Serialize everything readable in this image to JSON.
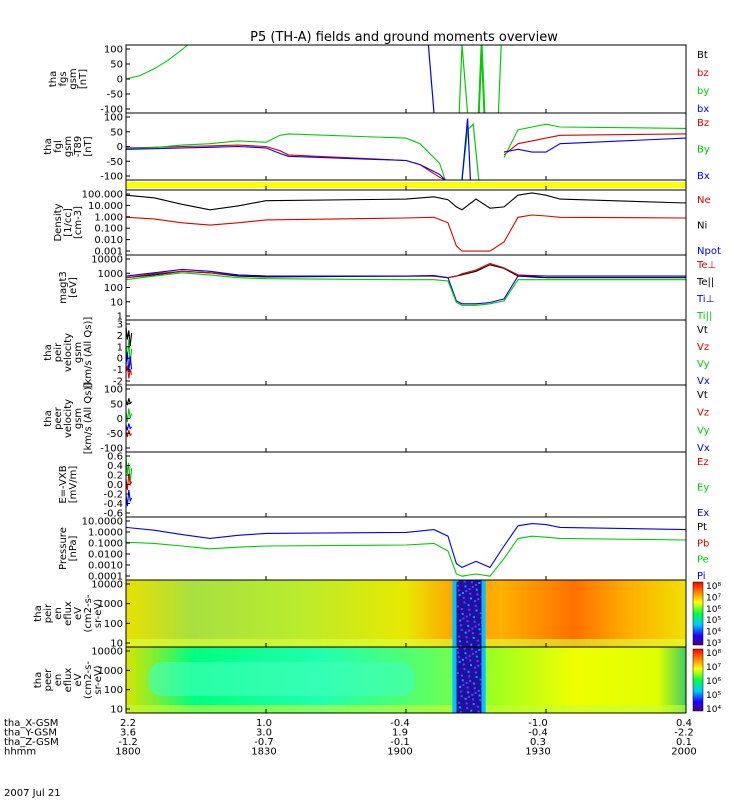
{
  "title": "P5 (TH-A) fields and ground moments overview",
  "date_label": "2007 Jul 21",
  "colors": {
    "black": "#000000",
    "red": "#dd0000",
    "green": "#00cc00",
    "blue": "#0000ee",
    "yellow": "#ffff00"
  },
  "ephemeris": {
    "rows": [
      {
        "label": "tha_X-GSM",
        "values": [
          "2.2",
          "1.0",
          "-0.4",
          "-1.0",
          "0.4"
        ]
      },
      {
        "label": "tha_Y-GSM",
        "values": [
          "3.6",
          "3.0",
          "1.9",
          "-0.4",
          "-2.2"
        ]
      },
      {
        "label": "tha_Z-GSM",
        "values": [
          "-1.2",
          "-0.7",
          "-0.1",
          "0.3",
          "0.1"
        ]
      },
      {
        "label": "hhmm",
        "values": [
          "1800",
          "1830",
          "1900",
          "1930",
          "2000"
        ]
      }
    ]
  },
  "chart_data": [
    {
      "id": "fgs",
      "type": "line",
      "ylabel": [
        "tha",
        "fgs",
        "gsm",
        "[nT]"
      ],
      "ylim": [
        -100,
        100
      ],
      "yticks": [
        "100",
        "50",
        "0",
        "-50",
        "-100"
      ],
      "legend": [
        "Bt",
        "bz",
        "by",
        "bx"
      ],
      "x": [
        1800,
        1805,
        1810,
        1815,
        1819,
        1822
      ],
      "series": [
        {
          "name": "by",
          "color": "green",
          "values": [
            0,
            10,
            30,
            55,
            80,
            100
          ]
        }
      ]
    },
    {
      "id": "fgl",
      "type": "line",
      "ylabel": [
        "tha",
        "fgl",
        "gsm",
        "-T89",
        "[nT]"
      ],
      "ylim": [
        -120,
        120
      ],
      "yticks": [
        "100",
        "50",
        "0",
        "-50",
        "-100"
      ],
      "legend": [
        "Bz",
        "By",
        "Bx"
      ],
      "x": [
        1800,
        1810,
        1820,
        1830,
        1840,
        1850,
        1855,
        1858,
        1900,
        1905,
        1908,
        1912,
        1914
      ],
      "series": [
        {
          "name": "Bz",
          "color": "red",
          "values": [
            -5,
            -3,
            0,
            2,
            5,
            0,
            -15,
            -30,
            -50,
            -65,
            -85,
            -110,
            -120
          ]
        },
        {
          "name": "By",
          "color": "green",
          "values": [
            -8,
            -4,
            5,
            10,
            20,
            15,
            40,
            45,
            30,
            10,
            -20,
            -60,
            -120
          ]
        },
        {
          "name": "Bx",
          "color": "blue",
          "values": [
            -10,
            -8,
            -5,
            -3,
            0,
            -5,
            -25,
            -35,
            -50,
            -65,
            -80,
            -100,
            -120
          ]
        }
      ]
    },
    {
      "id": "flag",
      "type": "bar",
      "color": "yellow"
    },
    {
      "id": "density",
      "type": "line",
      "scale": "log",
      "ylabel": [
        "Density",
        "[1/cc]",
        "[cm-3]"
      ],
      "ylim": [
        0.001,
        100
      ],
      "yticks": [
        "100.000",
        "10.000",
        "1.000",
        "0.100",
        "0.010",
        "0.001"
      ],
      "legend": [
        "Ne",
        "Ni",
        "Npot"
      ],
      "x": [
        1800,
        1810,
        1820,
        1830,
        1840,
        1850,
        1900,
        1910,
        1915,
        1918,
        1920,
        1925,
        1930,
        1935,
        1940,
        1945,
        1950,
        1955,
        2000
      ],
      "series": [
        {
          "name": "Ni",
          "color": "black",
          "values": [
            40,
            25,
            8,
            3,
            6,
            15,
            20,
            30,
            18,
            5,
            3,
            20,
            4,
            5,
            40,
            60,
            40,
            20,
            10
          ]
        },
        {
          "name": "Ne",
          "color": "red",
          "values": [
            0.8,
            0.6,
            0.3,
            0.2,
            0.3,
            0.5,
            0.7,
            0.8,
            0.3,
            0.005,
            0.002,
            0.002,
            0.002,
            0.01,
            0.8,
            1.2,
            1.0,
            0.8,
            0.7
          ]
        }
      ]
    },
    {
      "id": "temp",
      "type": "line",
      "scale": "log",
      "ylabel": [
        "magt3",
        "[eV]"
      ],
      "ylim": [
        1,
        10000
      ],
      "yticks": [
        "10000",
        "1000",
        "100",
        "10",
        "1"
      ],
      "legend": [
        "Te⊥",
        "Te||",
        "Ti⊥",
        "Ti||"
      ],
      "x": [
        1800,
        1810,
        1820,
        1830,
        1840,
        1850,
        1900,
        1910,
        1915,
        1918,
        1920,
        1925,
        1930,
        1935,
        1940,
        1950,
        2000
      ],
      "series": [
        {
          "name": "Te||",
          "color": "black",
          "values": [
            400,
            600,
            1000,
            800,
            500,
            450,
            500,
            500,
            400,
            500,
            600,
            1000,
            2500,
            1500,
            500,
            400,
            400
          ]
        },
        {
          "name": "Te⊥",
          "color": "red",
          "values": [
            400,
            700,
            1000,
            800,
            600,
            500,
            500,
            500,
            400,
            500,
            700,
            1200,
            3000,
            1600,
            600,
            500,
            500
          ]
        },
        {
          "name": "Ti⊥",
          "color": "blue",
          "values": [
            500,
            800,
            1300,
            1000,
            600,
            500,
            500,
            550,
            400,
            15,
            10,
            10,
            12,
            20,
            500,
            500,
            500
          ]
        },
        {
          "name": "Ti||",
          "color": "green",
          "values": [
            300,
            500,
            800,
            600,
            400,
            350,
            300,
            300,
            250,
            12,
            8,
            8,
            10,
            15,
            300,
            300,
            300
          ]
        }
      ]
    },
    {
      "id": "peir_vel",
      "type": "line",
      "ylabel": [
        "tha",
        "peir",
        "velocity",
        "gsm",
        "[km/s (All Qs)]"
      ],
      "ylim": [
        -2,
        3
      ],
      "yticks": [
        "3",
        "2",
        "1",
        "0",
        "-1",
        "-2"
      ],
      "legend": [
        "Vt",
        "Vz",
        "Vy",
        "Vx"
      ],
      "x": [
        1800,
        1800.5,
        1801,
        1801.5,
        1802
      ],
      "series": [
        {
          "name": "Vt",
          "color": "black",
          "values": [
            2.5,
            1.5,
            2.2,
            1.0,
            2.0
          ]
        },
        {
          "name": "Vy",
          "color": "green",
          "values": [
            1.0,
            0.0,
            1.5,
            -0.5,
            0.8
          ]
        },
        {
          "name": "Vx",
          "color": "blue",
          "values": [
            -0.5,
            0.5,
            -1.0,
            0.2,
            -0.8
          ]
        },
        {
          "name": "Vz",
          "color": "red",
          "values": [
            -1.0,
            -0.5,
            -1.5,
            -0.8,
            -1.2
          ]
        }
      ]
    },
    {
      "id": "peer_vel",
      "type": "line",
      "ylabel": [
        "tha",
        "peer",
        "velocity",
        "gsm",
        "[km/s (All Qs)]"
      ],
      "ylim": [
        -100,
        100
      ],
      "yticks": [
        "100",
        "50",
        "0",
        "-50",
        "-100"
      ],
      "legend": [
        "Vt",
        "Vz",
        "Vy",
        "Vx"
      ],
      "x": [
        1800,
        1800.5,
        1801,
        1801.5,
        1802
      ],
      "series": [
        {
          "name": "Vt",
          "color": "black",
          "values": [
            55,
            40,
            60,
            45,
            50
          ]
        },
        {
          "name": "Vy",
          "color": "green",
          "values": [
            20,
            -10,
            30,
            0,
            15
          ]
        },
        {
          "name": "Vx",
          "color": "blue",
          "values": [
            -20,
            -35,
            -15,
            -30,
            -25
          ]
        },
        {
          "name": "Vz",
          "color": "red",
          "values": [
            -40,
            -55,
            -35,
            -50,
            -45
          ]
        }
      ]
    },
    {
      "id": "efield",
      "type": "line",
      "ylabel": [
        "E=-VXB",
        "[mV/m]"
      ],
      "ylim": [
        -0.6,
        0.6
      ],
      "yticks": [
        "0.6",
        "0.4",
        "0.2",
        "0.0",
        "-0.2",
        "-0.4",
        "-0.6"
      ],
      "legend": [
        "Ez",
        "Ey",
        "Ex"
      ],
      "x": [
        1800,
        1800.5,
        1801,
        1801.5,
        1802
      ],
      "series": [
        {
          "name": "Ey",
          "color": "green",
          "values": [
            0.5,
            0.2,
            0.4,
            0.0,
            0.3
          ]
        },
        {
          "name": "Ez",
          "color": "red",
          "values": [
            0.1,
            -0.1,
            0.2,
            0.0,
            0.05
          ]
        },
        {
          "name": "Ex",
          "color": "blue",
          "values": [
            -0.2,
            -0.4,
            -0.1,
            -0.3,
            -0.25
          ]
        }
      ]
    },
    {
      "id": "pressure",
      "type": "line",
      "scale": "log",
      "ylabel": [
        "Pressure",
        "[nPa]"
      ],
      "ylim": [
        0.0001,
        10
      ],
      "yticks": [
        "10.0000",
        "1.0000",
        "0.1000",
        "0.0100",
        "0.0010",
        "0.0001"
      ],
      "legend": [
        "Pt",
        "Pb",
        "Pe",
        "Pi"
      ],
      "x": [
        1800,
        1810,
        1820,
        1830,
        1840,
        1850,
        1900,
        1910,
        1915,
        1918,
        1920,
        1925,
        1930,
        1935,
        1940,
        1945,
        1950,
        1955,
        2000
      ],
      "series": [
        {
          "name": "Pi",
          "color": "blue",
          "values": [
            1.5,
            0.9,
            0.4,
            0.2,
            0.35,
            0.5,
            0.6,
            1.0,
            0.3,
            0.002,
            0.001,
            0.003,
            0.001,
            0.05,
            2.0,
            3.0,
            2.5,
            1.5,
            1.0
          ]
        },
        {
          "name": "Pe",
          "color": "green",
          "values": [
            0.1,
            0.08,
            0.05,
            0.03,
            0.04,
            0.05,
            0.06,
            0.08,
            0.02,
            0.0003,
            0.0002,
            0.0003,
            0.0002,
            0.005,
            0.2,
            0.3,
            0.25,
            0.2,
            0.15
          ]
        }
      ]
    },
    {
      "id": "peir_spec",
      "type": "heatmap",
      "scale": "log",
      "ylabel": [
        "tha",
        "peir",
        "en",
        "eflux",
        "eV",
        "(cm2-s-",
        "sr-eV)"
      ],
      "ylim": [
        5,
        20000
      ],
      "yticks": [
        "10000",
        "1000",
        "100",
        "10"
      ],
      "colorbar": {
        "min_exp": 3,
        "max_exp": 8,
        "labels": [
          "10⁸",
          "10⁷",
          "10⁶",
          "10⁵",
          "10⁴",
          "10³"
        ]
      }
    },
    {
      "id": "peer_spec",
      "type": "heatmap",
      "scale": "log",
      "ylabel": [
        "tha",
        "peer",
        "en",
        "eflux",
        "eV",
        "(cm2-s-",
        "sr-eV)"
      ],
      "ylim": [
        5,
        20000
      ],
      "yticks": [
        "10000",
        "1000",
        "100",
        "10"
      ],
      "colorbar": {
        "min_exp": 4,
        "max_exp": 8,
        "labels": [
          "10⁸",
          "10⁷",
          "10⁶",
          "10⁵",
          "10⁴"
        ]
      }
    }
  ]
}
